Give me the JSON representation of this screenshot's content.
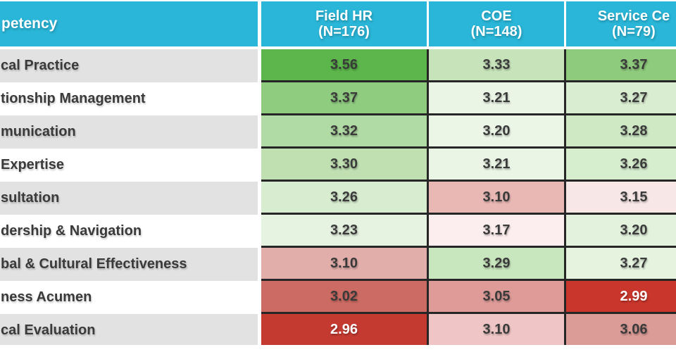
{
  "chart_data": {
    "type": "heatmap",
    "corner_header": "petency",
    "columns": [
      {
        "title": "Field HR",
        "subtitle": "(N=176)"
      },
      {
        "title": "COE",
        "subtitle": "(N=148)"
      },
      {
        "title": "Service Ce",
        "subtitle": "(N=79)"
      }
    ],
    "rows": [
      {
        "label": "cal Practice",
        "label_bg": "#e2e2e2",
        "values": [
          "3.56",
          "3.33",
          "3.37"
        ],
        "bg": [
          "#5cb64b",
          "#c6e3ba",
          "#8fcb7d"
        ],
        "fg": [
          "#3a3a3a",
          "#3a3a3a",
          "#3a3a3a"
        ]
      },
      {
        "label": "tionship Management",
        "label_bg": "#ffffff",
        "values": [
          "3.37",
          "3.21",
          "3.27"
        ],
        "bg": [
          "#90cc80",
          "#eaf5e6",
          "#d9edd1"
        ],
        "fg": [
          "#3a3a3a",
          "#3a3a3a",
          "#3a3a3a"
        ]
      },
      {
        "label": "munication",
        "label_bg": "#e2e2e2",
        "values": [
          "3.32",
          "3.20",
          "3.28"
        ],
        "bg": [
          "#b1dba4",
          "#ebf6e7",
          "#cfe9c5"
        ],
        "fg": [
          "#3a3a3a",
          "#3a3a3a",
          "#3a3a3a"
        ]
      },
      {
        "label": "Expertise",
        "label_bg": "#ffffff",
        "values": [
          "3.30",
          "3.21",
          "3.26"
        ],
        "bg": [
          "#c0e0b2",
          "#eaf5e5",
          "#d6edce"
        ],
        "fg": [
          "#3a3a3a",
          "#3a3a3a",
          "#3a3a3a"
        ]
      },
      {
        "label": "sultation",
        "label_bg": "#e2e2e2",
        "values": [
          "3.26",
          "3.10",
          "3.15"
        ],
        "bg": [
          "#d8edd0",
          "#e9b8b5",
          "#f8e7e7"
        ],
        "fg": [
          "#3a3a3a",
          "#3a3a3a",
          "#3a3a3a"
        ]
      },
      {
        "label": "dership & Navigation",
        "label_bg": "#ffffff",
        "values": [
          "3.23",
          "3.17",
          "3.20"
        ],
        "bg": [
          "#e6f3e0",
          "#fcedee",
          "#e3f2dd"
        ],
        "fg": [
          "#3a3a3a",
          "#3a3a3a",
          "#3a3a3a"
        ]
      },
      {
        "label": "bal & Cultural Effectiveness",
        "label_bg": "#e2e2e2",
        "values": [
          "3.10",
          "3.29",
          "3.27"
        ],
        "bg": [
          "#e2aeaa",
          "#c9e7be",
          "#e5f3df"
        ],
        "fg": [
          "#3a3a3a",
          "#3a3a3a",
          "#3a3a3a"
        ]
      },
      {
        "label": "ness Acumen",
        "label_bg": "#ffffff",
        "values": [
          "3.02",
          "3.05",
          "2.99"
        ],
        "bg": [
          "#cc6b63",
          "#de9b98",
          "#c8362c"
        ],
        "fg": [
          "#3a3a3a",
          "#3a3a3a",
          "#ffffff"
        ]
      },
      {
        "label": "cal Evaluation",
        "label_bg": "#e2e2e2",
        "values": [
          "2.96",
          "3.10",
          "3.06"
        ],
        "bg": [
          "#c43a30",
          "#efc6c5",
          "#db9b96"
        ],
        "fg": [
          "#ffffff",
          "#3a3a3a",
          "#3a3a3a"
        ]
      }
    ],
    "colors": {
      "header_bg": "#2ab6d8",
      "grid_border": "#262626",
      "row_alt_gray": "#e2e2e2",
      "row_alt_white": "#ffffff",
      "header_text": "#ffffff",
      "value_text": "#3a3a3a"
    }
  }
}
